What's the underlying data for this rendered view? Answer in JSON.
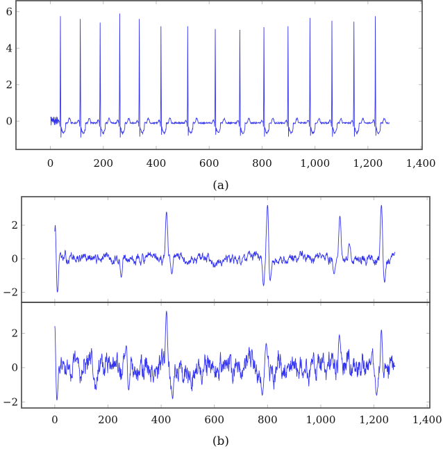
{
  "figure": {
    "captions": {
      "a": "(a)",
      "b": "(b)"
    },
    "line_color": "#3535f0",
    "frame_color": "#444444",
    "tick_color": "#bbbbbb"
  },
  "chart_data": [
    {
      "id": "a",
      "type": "line",
      "title": "",
      "caption": "(a)",
      "xlabel": "",
      "ylabel": "",
      "xlim": [
        -130,
        1405
      ],
      "ylim": [
        -1.55,
        6.6
      ],
      "xticks": [
        0,
        200,
        400,
        600,
        800,
        1000,
        1200,
        1400
      ],
      "xtick_labels": [
        "0",
        "200",
        "400",
        "600",
        "800",
        "1,000",
        "1,200",
        "1,400"
      ],
      "yticks": [
        0,
        2,
        4,
        6
      ],
      "ytick_labels": [
        "0",
        "2",
        "4",
        "6"
      ],
      "grid": false,
      "legend": null,
      "series": [
        {
          "name": "signal",
          "description": "Periodic spike train (ECG-like) over samples 0-1280 with baseline near -0.1",
          "x_range": [
            0,
            1280
          ],
          "baseline": -0.1,
          "peaks": [
            {
              "x": 38,
              "y": 5.75,
              "trough": -0.9
            },
            {
              "x": 113,
              "y": 5.6,
              "trough": -0.9
            },
            {
              "x": 188,
              "y": 5.4,
              "trough": -0.85
            },
            {
              "x": 262,
              "y": 5.9,
              "trough": -0.9
            },
            {
              "x": 336,
              "y": 5.6,
              "trough": -0.85
            },
            {
              "x": 418,
              "y": 5.2,
              "trough": -0.75
            },
            {
              "x": 519,
              "y": 5.2,
              "trough": -0.8
            },
            {
              "x": 623,
              "y": 5.05,
              "trough": -0.75
            },
            {
              "x": 716,
              "y": 5.0,
              "trough": -0.8
            },
            {
              "x": 807,
              "y": 5.15,
              "trough": -0.85
            },
            {
              "x": 898,
              "y": 5.2,
              "trough": -0.85
            },
            {
              "x": 981,
              "y": 5.65,
              "trough": -0.8
            },
            {
              "x": 1064,
              "y": 5.5,
              "trough": -0.85
            },
            {
              "x": 1147,
              "y": 5.45,
              "trough": -0.85
            },
            {
              "x": 1228,
              "y": 5.75,
              "trough": -0.8
            }
          ]
        }
      ]
    },
    {
      "id": "b-top",
      "type": "line",
      "title": "",
      "caption": "(b)",
      "xlabel": "",
      "ylabel": "",
      "xlim": [
        -125,
        1410
      ],
      "ylim": [
        -2.6,
        3.7
      ],
      "xticks": [
        0,
        200,
        400,
        600,
        800,
        1000,
        1200,
        1400
      ],
      "yticks": [
        -2,
        0,
        2
      ],
      "ytick_labels": [
        "−2",
        "0",
        "2"
      ],
      "grid": false,
      "legend": null,
      "series": [
        {
          "name": "signal",
          "description": "Noisy signal with several large biphasic deflections",
          "x_range": [
            0,
            1280
          ],
          "key_points": [
            {
              "x": 3,
              "y": 2.2
            },
            {
              "x": 10,
              "y": -2.0
            },
            {
              "x": 250,
              "y": -1.1
            },
            {
              "x": 420,
              "y": 2.8
            },
            {
              "x": 440,
              "y": -0.9
            },
            {
              "x": 785,
              "y": -1.6
            },
            {
              "x": 800,
              "y": 3.2
            },
            {
              "x": 810,
              "y": -1.3
            },
            {
              "x": 1050,
              "y": -0.9
            },
            {
              "x": 1072,
              "y": 2.55
            },
            {
              "x": 1107,
              "y": 0.9
            },
            {
              "x": 1228,
              "y": 3.2
            },
            {
              "x": 1240,
              "y": -1.4
            },
            {
              "x": 1280,
              "y": 0.4
            }
          ],
          "baseline": 0.0
        }
      ]
    },
    {
      "id": "b-bottom",
      "type": "line",
      "title": "",
      "caption": "(b)",
      "xlabel": "",
      "ylabel": "",
      "xlim": [
        -125,
        1410
      ],
      "ylim": [
        -2.35,
        3.8
      ],
      "xticks": [
        0,
        200,
        400,
        600,
        800,
        1000,
        1200,
        1400
      ],
      "xtick_labels": [
        "0",
        "200",
        "400",
        "600",
        "800",
        "1,000",
        "1,200",
        "1,400"
      ],
      "yticks": [
        -2,
        0,
        2
      ],
      "ytick_labels": [
        "−2",
        "0",
        "2"
      ],
      "grid": false,
      "legend": null,
      "series": [
        {
          "name": "signal",
          "description": "Highly noisy oscillating signal",
          "x_range": [
            0,
            1280
          ],
          "key_points": [
            {
              "x": 2,
              "y": 2.9
            },
            {
              "x": 8,
              "y": -1.9
            },
            {
              "x": 270,
              "y": 1.3
            },
            {
              "x": 278,
              "y": -1.3
            },
            {
              "x": 420,
              "y": 3.3
            },
            {
              "x": 443,
              "y": -1.8
            },
            {
              "x": 780,
              "y": -1.6
            },
            {
              "x": 795,
              "y": 1.4
            },
            {
              "x": 1070,
              "y": 1.9
            },
            {
              "x": 1210,
              "y": -1.6
            },
            {
              "x": 1228,
              "y": 2.2
            },
            {
              "x": 1280,
              "y": 0.1
            }
          ],
          "baseline": 0.0
        }
      ]
    }
  ]
}
